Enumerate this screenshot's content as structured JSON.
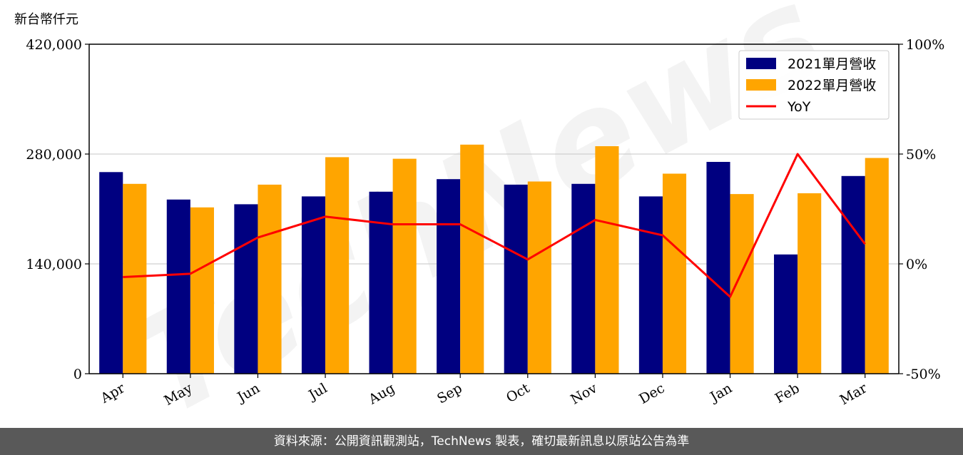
{
  "chart_data": {
    "type": "bar",
    "categories": [
      "Apr",
      "May",
      "Jun",
      "Jul",
      "Aug",
      "Sep",
      "Oct",
      "Nov",
      "Dec",
      "Jan",
      "Feb",
      "Mar"
    ],
    "series": [
      {
        "name": "2021單月營收",
        "kind": "bar",
        "axis": "left",
        "color": "#000080",
        "values": [
          257000,
          222000,
          216000,
          226000,
          232000,
          248000,
          241000,
          242000,
          226000,
          270000,
          152000,
          252000
        ]
      },
      {
        "name": "2022單月營收",
        "kind": "bar",
        "axis": "left",
        "color": "#FFA500",
        "values": [
          242000,
          212000,
          241000,
          276000,
          274000,
          292000,
          245000,
          290000,
          255000,
          229000,
          230000,
          275000
        ]
      },
      {
        "name": "YoY",
        "kind": "line",
        "axis": "right",
        "color": "#FF0000",
        "values": [
          -6,
          -4.5,
          12,
          21.5,
          18,
          18,
          2,
          20,
          13,
          -15,
          50,
          9
        ]
      }
    ],
    "ylabel": "新台幣仟元",
    "ylim": [
      0,
      420000
    ],
    "y_ticks": [
      "0",
      "140,000",
      "280,000",
      "420,000"
    ],
    "y2lim": [
      -50,
      100
    ],
    "y2_ticks": [
      "-50%",
      "0%",
      "50%",
      "100%"
    ],
    "grid": "horizontal",
    "legend_position": "top-right"
  },
  "watermark": "TechNews",
  "footer": {
    "text": "資料來源：公開資訊觀測站，TechNews 製表，確切最新訊息以原站公告為準"
  }
}
